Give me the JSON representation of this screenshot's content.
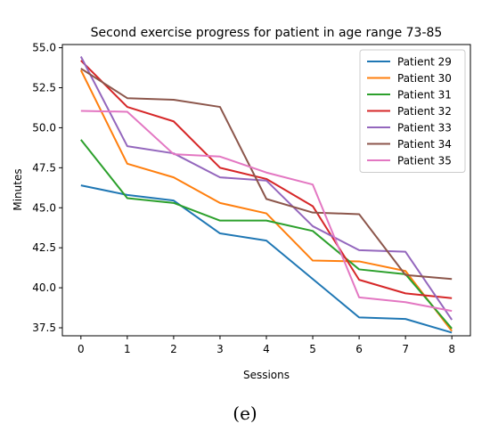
{
  "chart_data": {
    "type": "line",
    "title": "Second exercise progress for patient in age range 73-85",
    "xlabel": "Sessions",
    "ylabel": "Minutes",
    "x": [
      0,
      1,
      2,
      3,
      4,
      5,
      6,
      7,
      8
    ],
    "xlim": [
      -0.4,
      8.4
    ],
    "ylim": [
      37.0,
      55.2
    ],
    "xticks": [
      "0",
      "1",
      "2",
      "3",
      "4",
      "5",
      "6",
      "7",
      "8"
    ],
    "yticks": [
      "37.5",
      "40.0",
      "42.5",
      "45.0",
      "47.5",
      "50.0",
      "52.5",
      "55.0"
    ],
    "grid": false,
    "legend_position": "top-right",
    "series": [
      {
        "name": "Patient 29",
        "color": "#1f77b4",
        "values": [
          46.4,
          45.8,
          45.45,
          43.4,
          42.95,
          40.55,
          38.15,
          38.05,
          37.2
        ]
      },
      {
        "name": "Patient 30",
        "color": "#ff7f0e",
        "values": [
          53.6,
          47.75,
          46.9,
          45.3,
          44.65,
          41.7,
          41.65,
          41.05,
          37.3
        ]
      },
      {
        "name": "Patient 31",
        "color": "#2ca02c",
        "values": [
          49.25,
          45.6,
          45.3,
          44.2,
          44.2,
          43.55,
          41.15,
          40.85,
          37.45
        ]
      },
      {
        "name": "Patient 32",
        "color": "#d62728",
        "values": [
          54.2,
          51.3,
          50.4,
          47.5,
          46.8,
          45.1,
          40.5,
          39.65,
          39.35
        ]
      },
      {
        "name": "Patient 33",
        "color": "#9467bd",
        "values": [
          54.45,
          48.85,
          48.4,
          46.9,
          46.7,
          43.85,
          42.35,
          42.25,
          38.0
        ]
      },
      {
        "name": "Patient 34",
        "color": "#8c564b",
        "values": [
          53.7,
          51.85,
          51.75,
          51.3,
          45.55,
          44.7,
          44.6,
          40.8,
          40.55
        ]
      },
      {
        "name": "Patient 35",
        "color": "#e377c2",
        "values": [
          51.05,
          51.0,
          48.35,
          48.2,
          47.2,
          46.45,
          39.4,
          39.1,
          38.55
        ]
      }
    ]
  },
  "caption": "(e)"
}
